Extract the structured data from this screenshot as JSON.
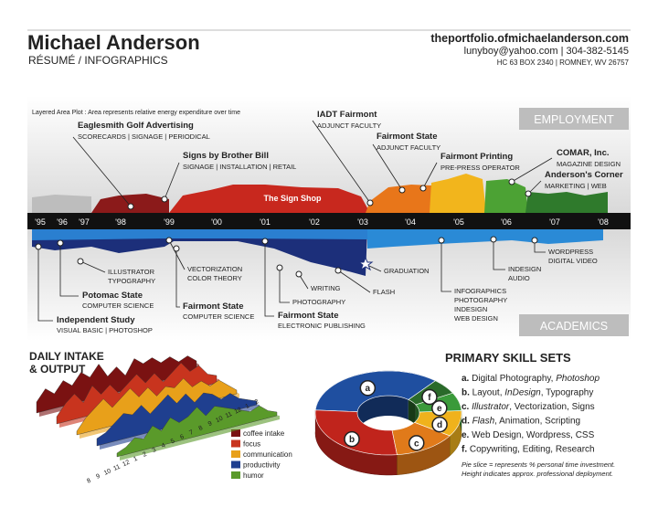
{
  "header": {
    "name": "Michael Anderson",
    "subtitle": "RÉSUMÉ / INFOGRAPHICS",
    "website": "theportfolio.ofmichaelanderson.com",
    "contact": "lunyboy@yahoo.com | 304-382-5145",
    "address": "HC 63 BOX 2340 | ROMNEY, WV 26757"
  },
  "timeline": {
    "note": "Layered Area Plot : Area represents relative energy expenditure over time",
    "employment_label": "EMPLOYMENT",
    "academics_label": "ACADEMICS",
    "years": [
      "'95",
      "'96",
      "'97",
      "'98",
      "'99",
      "'00",
      "'01",
      "'02",
      "'03",
      "'04",
      "'05",
      "'06",
      "'07",
      "'08"
    ],
    "sign_shop": "The Sign Shop",
    "employment": [
      {
        "title": "Eaglesmith Golf Advertising",
        "detail": "SCORECARDS | SIGNAGE | PERIODICAL"
      },
      {
        "title": "Signs by Brother Bill",
        "detail": "SIGNAGE | INSTALLATION | RETAIL"
      },
      {
        "title": "IADT Fairmont",
        "detail": "ADJUNCT FACULTY"
      },
      {
        "title": "Fairmont State",
        "detail": "ADJUNCT FACULTY"
      },
      {
        "title": "Fairmont Printing",
        "detail": "PRE-PRESS OPERATOR"
      },
      {
        "title": "COMAR, Inc.",
        "detail": "MAGAZINE DESIGN"
      },
      {
        "title": "Anderson's Corner",
        "detail": "MARKETING | WEB"
      }
    ],
    "academics": [
      {
        "lines": [
          "ILLUSTRATOR",
          "TYPOGRAPHY"
        ]
      },
      {
        "title": "Potomac State",
        "lines": [
          "COMPUTER SCIENCE"
        ]
      },
      {
        "title": "Independent Study",
        "lines": [
          "VISUAL BASIC | PHOTOSHOP"
        ]
      },
      {
        "lines": [
          "VECTORIZATION",
          "COLOR THEORY"
        ]
      },
      {
        "title": "Fairmont State",
        "lines": [
          "COMPUTER SCIENCE"
        ]
      },
      {
        "lines": [
          "PHOTOGRAPHY"
        ]
      },
      {
        "title": "Fairmont State",
        "lines": [
          "ELECTRONIC PUBLISHING"
        ]
      },
      {
        "lines": [
          "WRITING"
        ]
      },
      {
        "lines": [
          "FLASH"
        ]
      },
      {
        "lines": [
          "GRADUATION"
        ]
      },
      {
        "lines": [
          "INFOGRAPHICS",
          "PHOTOGRAPHY",
          "INDESIGN",
          "WEB DESIGN"
        ]
      },
      {
        "lines": [
          "INDESIGN",
          "AUDIO"
        ]
      },
      {
        "lines": [
          "WORDPRESS",
          "DIGITAL VIDEO"
        ]
      }
    ]
  },
  "daily": {
    "title": [
      "DAILY INTAKE",
      "& OUTPUT"
    ],
    "hours": [
      "8",
      "9",
      "10",
      "11",
      "12",
      "1",
      "2",
      "3",
      "4",
      "5",
      "6",
      "7",
      "8",
      "9",
      "10",
      "11",
      "12",
      "1",
      "2"
    ],
    "series": [
      {
        "name": "coffee intake",
        "color": "#7a1212",
        "values": [
          3,
          6,
          4,
          7,
          5,
          8,
          6,
          9,
          5,
          7,
          4,
          8,
          6,
          7,
          5,
          6,
          4,
          5,
          3
        ]
      },
      {
        "name": "focus",
        "color": "#c8341e",
        "values": [
          2,
          5,
          7,
          4,
          8,
          5,
          7,
          4,
          6,
          8,
          5,
          7,
          4,
          6,
          8,
          5,
          6,
          3,
          2
        ]
      },
      {
        "name": "communication",
        "color": "#e8a01a",
        "values": [
          1,
          4,
          6,
          8,
          5,
          7,
          9,
          6,
          8,
          5,
          7,
          6,
          8,
          5,
          6,
          4,
          5,
          3,
          1
        ]
      },
      {
        "name": "productivity",
        "color": "#1f3f8f",
        "values": [
          2,
          3,
          5,
          7,
          6,
          8,
          5,
          7,
          9,
          6,
          8,
          5,
          7,
          6,
          4,
          5,
          3,
          2,
          1
        ]
      },
      {
        "name": "humor",
        "color": "#5a9a2a",
        "values": [
          1,
          2,
          4,
          3,
          6,
          4,
          7,
          5,
          6,
          8,
          5,
          7,
          6,
          5,
          4,
          3,
          4,
          2,
          1
        ]
      }
    ]
  },
  "skills": {
    "title": "PRIMARY SKILL SETS",
    "items": [
      {
        "letter": "a.",
        "segments": [
          {
            "text": "Digital Photography, "
          },
          {
            "text": "Photoshop",
            "italic": true
          }
        ]
      },
      {
        "letter": "b.",
        "segments": [
          {
            "text": "Layout, "
          },
          {
            "text": "InDesign",
            "italic": true
          },
          {
            "text": ", Typography"
          }
        ]
      },
      {
        "letter": "c.",
        "segments": [
          {
            "text": "Illustrator",
            "italic": true
          },
          {
            "text": ", Vectorization, Signs"
          }
        ]
      },
      {
        "letter": "d.",
        "segments": [
          {
            "text": "Flash",
            "italic": true
          },
          {
            "text": ", Animation, Scripting"
          }
        ]
      },
      {
        "letter": "e.",
        "segments": [
          {
            "text": "Web Design, Wordpress, CSS"
          }
        ]
      },
      {
        "letter": "f.",
        "segments": [
          {
            "text": "Copywriting, Editing, Research"
          }
        ]
      }
    ],
    "slices": [
      {
        "label": "a",
        "value": 35,
        "color": "#1f4fa0"
      },
      {
        "label": "b",
        "value": 28,
        "color": "#c0241c"
      },
      {
        "label": "c",
        "value": 14,
        "color": "#e07a1a"
      },
      {
        "label": "d",
        "value": 10,
        "color": "#f0b21c"
      },
      {
        "label": "e",
        "value": 7,
        "color": "#3a9a3a"
      },
      {
        "label": "f",
        "value": 6,
        "color": "#2a6a2a"
      }
    ],
    "notes": [
      "Pie slice = represents % personal time investment.",
      "Height indicates approx. professional deployment."
    ]
  }
}
